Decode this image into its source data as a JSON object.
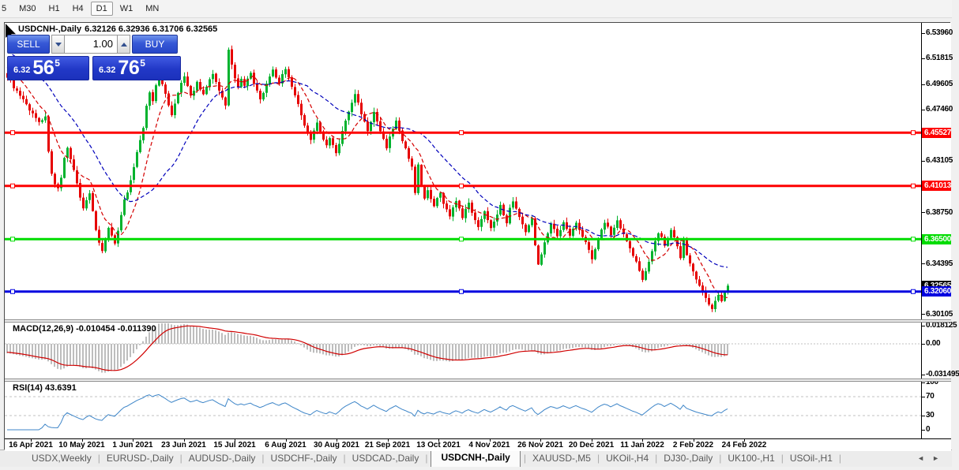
{
  "toolbar": {
    "timeframes": [
      "5",
      "M30",
      "H1",
      "H4",
      "D1",
      "W1",
      "MN"
    ],
    "active": "D1"
  },
  "chart_header": {
    "symbol_label": "USDCNH-,Daily",
    "ohlc_text": "6.32126 6.32936 6.31706 6.32565"
  },
  "trade_panel": {
    "sell_label": "SELL",
    "buy_label": "BUY",
    "volume": "1.00",
    "sell_price": {
      "small": "6.32",
      "big": "56",
      "sup": "5"
    },
    "buy_price": {
      "small": "6.32",
      "big": "76",
      "sup": "5"
    }
  },
  "indicators": {
    "macd_label": "MACD(12,26,9) -0.010454 -0.011390",
    "rsi_label": "RSI(14) 43.6391"
  },
  "colors": {
    "candle_up": "#00b22d",
    "candle_down": "#e60000",
    "ma_fast": "#d40000",
    "ma_slow": "#0000bb",
    "macd_hist": "#bdbdbd",
    "macd_signal": "#d00000",
    "rsi_line": "#3d85c8",
    "level_red": "#fe0000",
    "level_green": "#00dc00",
    "level_blue": "#0000e0",
    "bid_badge_bg": "#000000",
    "grid_dash": "#c0c0c0"
  },
  "chart_data": {
    "type": "candlestick",
    "symbol": "USDCNH-",
    "timeframe": "Daily",
    "ohlc_current": {
      "open": 6.32126,
      "high": 6.32936,
      "low": 6.31706,
      "close": 6.32565
    },
    "last_close": 6.32565,
    "candle_count": 229,
    "price_axis_ticks": [
      "6.53960",
      "6.51815",
      "6.49605",
      "6.47460",
      "6.43105",
      "6.38750",
      "6.34395",
      "6.30105"
    ],
    "price_axis_tick_values": [
      6.5396,
      6.51815,
      6.49605,
      6.4746,
      6.43105,
      6.3875,
      6.34395,
      6.30105
    ],
    "levels": [
      {
        "value": 6.45527,
        "label": "6.45527",
        "color": "#fe0000"
      },
      {
        "value": 6.41013,
        "label": "6.41013",
        "color": "#fe0000"
      },
      {
        "value": 6.365,
        "label": "6.36500",
        "color": "#00dc00"
      },
      {
        "value": 6.3206,
        "label": "6.32060",
        "color": "#0000e0"
      }
    ],
    "bid": {
      "value": 6.32565,
      "label": "6.32565",
      "color": "#000000"
    },
    "x_axis_dates": [
      "16 Apr 2021",
      "10 May 2021",
      "1 Jun 2021",
      "23 Jun 2021",
      "15 Jul 2021",
      "6 Aug 2021",
      "30 Aug 2021",
      "21 Sep 2021",
      "13 Oct 2021",
      "4 Nov 2021",
      "26 Nov 2021",
      "20 Dec 2021",
      "11 Jan 2022",
      "2 Feb 2022",
      "24 Feb 2022"
    ],
    "moving_averages": [
      {
        "period": 9,
        "color": "#d40000",
        "style": "dashed"
      },
      {
        "period": 26,
        "color": "#0000bb",
        "style": "dashed"
      }
    ],
    "macd": {
      "fast": 12,
      "slow": 26,
      "signal": 9,
      "main_value": -0.010454,
      "signal_value": -0.01139,
      "axis_labels": [
        "0.018125",
        "0.00",
        "-0.031495"
      ],
      "axis_values": [
        0.018125,
        0,
        -0.031495
      ]
    },
    "rsi": {
      "period": 14,
      "value": 43.6391,
      "axis_labels": [
        "100",
        "70",
        "30",
        "0"
      ],
      "axis_values": [
        100,
        70,
        30,
        0
      ],
      "dashed_levels": [
        70,
        30
      ]
    },
    "anchor_closes": [
      [
        0,
        6.503
      ],
      [
        2,
        6.494
      ],
      [
        4,
        6.486
      ],
      [
        6,
        6.479
      ],
      [
        8,
        6.471
      ],
      [
        10,
        6.465
      ],
      [
        12,
        6.468
      ],
      [
        13,
        6.44
      ],
      [
        14,
        6.421
      ],
      [
        15,
        6.411
      ],
      [
        16,
        6.407
      ],
      [
        17,
        6.416
      ],
      [
        18,
        6.433
      ],
      [
        19,
        6.442
      ],
      [
        20,
        6.434
      ],
      [
        21,
        6.424
      ],
      [
        22,
        6.412
      ],
      [
        23,
        6.4
      ],
      [
        24,
        6.392
      ],
      [
        25,
        6.398
      ],
      [
        26,
        6.404
      ],
      [
        27,
        6.388
      ],
      [
        28,
        6.372
      ],
      [
        29,
        6.361
      ],
      [
        30,
        6.356
      ],
      [
        31,
        6.366
      ],
      [
        32,
        6.374
      ],
      [
        33,
        6.368
      ],
      [
        34,
        6.362
      ],
      [
        35,
        6.373
      ],
      [
        36,
        6.386
      ],
      [
        37,
        6.398
      ],
      [
        38,
        6.405
      ],
      [
        39,
        6.414
      ],
      [
        40,
        6.426
      ],
      [
        41,
        6.438
      ],
      [
        42,
        6.449
      ],
      [
        43,
        6.459
      ],
      [
        44,
        6.477
      ],
      [
        45,
        6.49
      ],
      [
        46,
        6.483
      ],
      [
        47,
        6.496
      ],
      [
        48,
        6.503
      ],
      [
        49,
        6.497
      ],
      [
        50,
        6.488
      ],
      [
        51,
        6.479
      ],
      [
        52,
        6.471
      ],
      [
        53,
        6.479
      ],
      [
        54,
        6.489
      ],
      [
        55,
        6.498
      ],
      [
        56,
        6.503
      ],
      [
        57,
        6.494
      ],
      [
        58,
        6.486
      ],
      [
        59,
        6.491
      ],
      [
        60,
        6.498
      ],
      [
        61,
        6.492
      ],
      [
        62,
        6.488
      ],
      [
        63,
        6.495
      ],
      [
        64,
        6.501
      ],
      [
        65,
        6.505
      ],
      [
        66,
        6.498
      ],
      [
        67,
        6.492
      ],
      [
        68,
        6.486
      ],
      [
        69,
        6.478
      ],
      [
        70,
        6.525
      ],
      [
        71,
        6.512
      ],
      [
        72,
        6.501
      ],
      [
        73,
        6.495
      ],
      [
        74,
        6.5
      ],
      [
        75,
        6.494
      ],
      [
        76,
        6.5
      ],
      [
        77,
        6.506
      ],
      [
        78,
        6.497
      ],
      [
        79,
        6.49
      ],
      [
        80,
        6.484
      ],
      [
        82,
        6.496
      ],
      [
        84,
        6.508
      ],
      [
        85,
        6.502
      ],
      [
        86,
        6.496
      ],
      [
        87,
        6.504
      ],
      [
        88,
        6.51
      ],
      [
        89,
        6.503
      ],
      [
        90,
        6.494
      ],
      [
        91,
        6.487
      ],
      [
        92,
        6.479
      ],
      [
        93,
        6.47
      ],
      [
        94,
        6.462
      ],
      [
        95,
        6.455
      ],
      [
        96,
        6.45
      ],
      [
        97,
        6.457
      ],
      [
        98,
        6.463
      ],
      [
        99,
        6.456
      ],
      [
        100,
        6.449
      ],
      [
        101,
        6.444
      ],
      [
        102,
        6.451
      ],
      [
        103,
        6.444
      ],
      [
        104,
        6.438
      ],
      [
        105,
        6.446
      ],
      [
        106,
        6.456
      ],
      [
        107,
        6.465
      ],
      [
        108,
        6.473
      ],
      [
        109,
        6.481
      ],
      [
        110,
        6.488
      ],
      [
        111,
        6.48
      ],
      [
        112,
        6.472
      ],
      [
        113,
        6.464
      ],
      [
        114,
        6.457
      ],
      [
        115,
        6.465
      ],
      [
        116,
        6.472
      ],
      [
        117,
        6.464
      ],
      [
        118,
        6.456
      ],
      [
        119,
        6.449
      ],
      [
        120,
        6.443
      ],
      [
        121,
        6.451
      ],
      [
        122,
        6.459
      ],
      [
        123,
        6.465
      ],
      [
        124,
        6.457
      ],
      [
        125,
        6.449
      ],
      [
        126,
        6.441
      ],
      [
        127,
        6.434
      ],
      [
        128,
        6.427
      ],
      [
        129,
        6.405
      ],
      [
        130,
        6.428
      ],
      [
        131,
        6.409
      ],
      [
        132,
        6.399
      ],
      [
        133,
        6.406
      ],
      [
        134,
        6.398
      ],
      [
        135,
        6.393
      ],
      [
        136,
        6.399
      ],
      [
        137,
        6.404
      ],
      [
        138,
        6.396
      ],
      [
        139,
        6.39
      ],
      [
        140,
        6.385
      ],
      [
        141,
        6.391
      ],
      [
        142,
        6.397
      ],
      [
        143,
        6.39
      ],
      [
        144,
        6.384
      ],
      [
        145,
        6.39
      ],
      [
        146,
        6.395
      ],
      [
        147,
        6.388
      ],
      [
        148,
        6.382
      ],
      [
        149,
        6.376
      ],
      [
        150,
        6.382
      ],
      [
        151,
        6.388
      ],
      [
        152,
        6.382
      ],
      [
        153,
        6.375
      ],
      [
        154,
        6.381
      ],
      [
        155,
        6.387
      ],
      [
        156,
        6.393
      ],
      [
        157,
        6.386
      ],
      [
        158,
        6.379
      ],
      [
        159,
        6.391
      ],
      [
        160,
        6.398
      ],
      [
        161,
        6.391
      ],
      [
        162,
        6.384
      ],
      [
        163,
        6.377
      ],
      [
        164,
        6.371
      ],
      [
        165,
        6.378
      ],
      [
        166,
        6.384
      ],
      [
        167,
        6.359
      ],
      [
        168,
        6.343
      ],
      [
        169,
        6.353
      ],
      [
        170,
        6.363
      ],
      [
        171,
        6.371
      ],
      [
        172,
        6.378
      ],
      [
        173,
        6.373
      ],
      [
        174,
        6.367
      ],
      [
        175,
        6.373
      ],
      [
        176,
        6.379
      ],
      [
        177,
        6.373
      ],
      [
        178,
        6.368
      ],
      [
        179,
        6.374
      ],
      [
        180,
        6.38
      ],
      [
        181,
        6.374
      ],
      [
        182,
        6.368
      ],
      [
        183,
        6.362
      ],
      [
        184,
        6.356
      ],
      [
        185,
        6.349
      ],
      [
        186,
        6.357
      ],
      [
        187,
        6.365
      ],
      [
        188,
        6.373
      ],
      [
        189,
        6.38
      ],
      [
        190,
        6.375
      ],
      [
        191,
        6.369
      ],
      [
        192,
        6.375
      ],
      [
        193,
        6.381
      ],
      [
        194,
        6.375
      ],
      [
        195,
        6.369
      ],
      [
        196,
        6.363
      ],
      [
        197,
        6.357
      ],
      [
        198,
        6.351
      ],
      [
        199,
        6.345
      ],
      [
        200,
        6.338
      ],
      [
        201,
        6.331
      ],
      [
        202,
        6.339
      ],
      [
        203,
        6.347
      ],
      [
        204,
        6.355
      ],
      [
        205,
        6.363
      ],
      [
        206,
        6.371
      ],
      [
        207,
        6.366
      ],
      [
        208,
        6.36
      ],
      [
        209,
        6.366
      ],
      [
        210,
        6.372
      ],
      [
        211,
        6.366
      ],
      [
        212,
        6.358
      ],
      [
        213,
        6.348
      ],
      [
        214,
        6.365
      ],
      [
        215,
        6.352
      ],
      [
        216,
        6.344
      ],
      [
        217,
        6.338
      ],
      [
        218,
        6.332
      ],
      [
        219,
        6.326
      ],
      [
        220,
        6.32
      ],
      [
        221,
        6.315
      ],
      [
        222,
        6.31
      ],
      [
        223,
        6.306
      ],
      [
        224,
        6.313
      ],
      [
        225,
        6.319
      ],
      [
        226,
        6.312
      ],
      [
        227,
        6.321
      ],
      [
        228,
        6.32565
      ]
    ]
  },
  "tabs": {
    "items": [
      "USDX,Weekly",
      "EURUSD-,Daily",
      "AUDUSD-,Daily",
      "USDCHF-,Daily",
      "USDCAD-,Daily",
      "USDCNH-,Daily",
      "XAUUSD-,M5",
      "UKOil-,H4",
      "DJ30-,Daily",
      "UK100-,H1",
      "USOil-,H1"
    ],
    "active_index": 5,
    "scroll_left": "◄",
    "scroll_right": "►"
  }
}
